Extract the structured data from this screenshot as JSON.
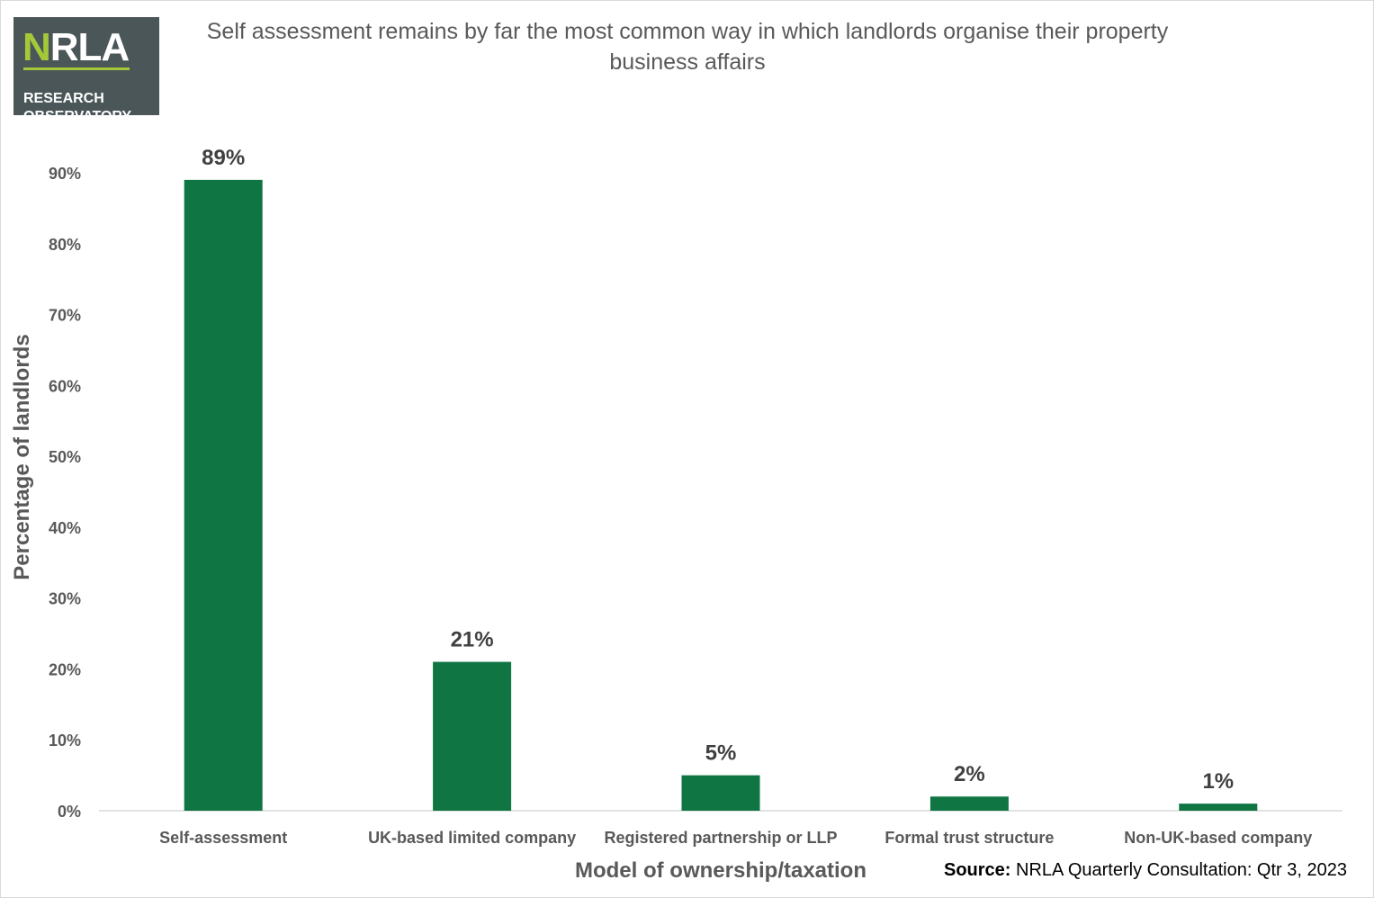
{
  "logo": {
    "mark_main": "RLA",
    "mark_accent": "N",
    "line1": "RESEARCH",
    "line2": "OBSERVATORY"
  },
  "source": {
    "label": "Source:",
    "text": "NRLA Quarterly Consultation: Qtr 3, 2023"
  },
  "colors": {
    "bar": "#0f7542",
    "text": "#595959",
    "logo_bg": "#4a5657",
    "logo_accent": "#a3c93a"
  },
  "chart_data": {
    "type": "bar",
    "title": "Self assessment remains by far the most common way in which landlords organise their property business affairs",
    "xlabel": "Model of ownership/taxation",
    "ylabel": "Percentage of landlords",
    "categories": [
      "Self-assessment",
      "UK-based limited company",
      "Registered partnership or LLP",
      "Formal trust structure",
      "Non-UK-based company"
    ],
    "values": [
      89,
      21,
      5,
      2,
      1
    ],
    "data_labels": [
      "89%",
      "21%",
      "5%",
      "2%",
      "1%"
    ],
    "ylim": [
      0,
      90
    ],
    "yticks": [
      0,
      10,
      20,
      30,
      40,
      50,
      60,
      70,
      80,
      90
    ],
    "ytick_labels": [
      "0%",
      "10%",
      "20%",
      "30%",
      "40%",
      "50%",
      "60%",
      "70%",
      "80%",
      "90%"
    ],
    "grid": false,
    "legend": "none"
  }
}
